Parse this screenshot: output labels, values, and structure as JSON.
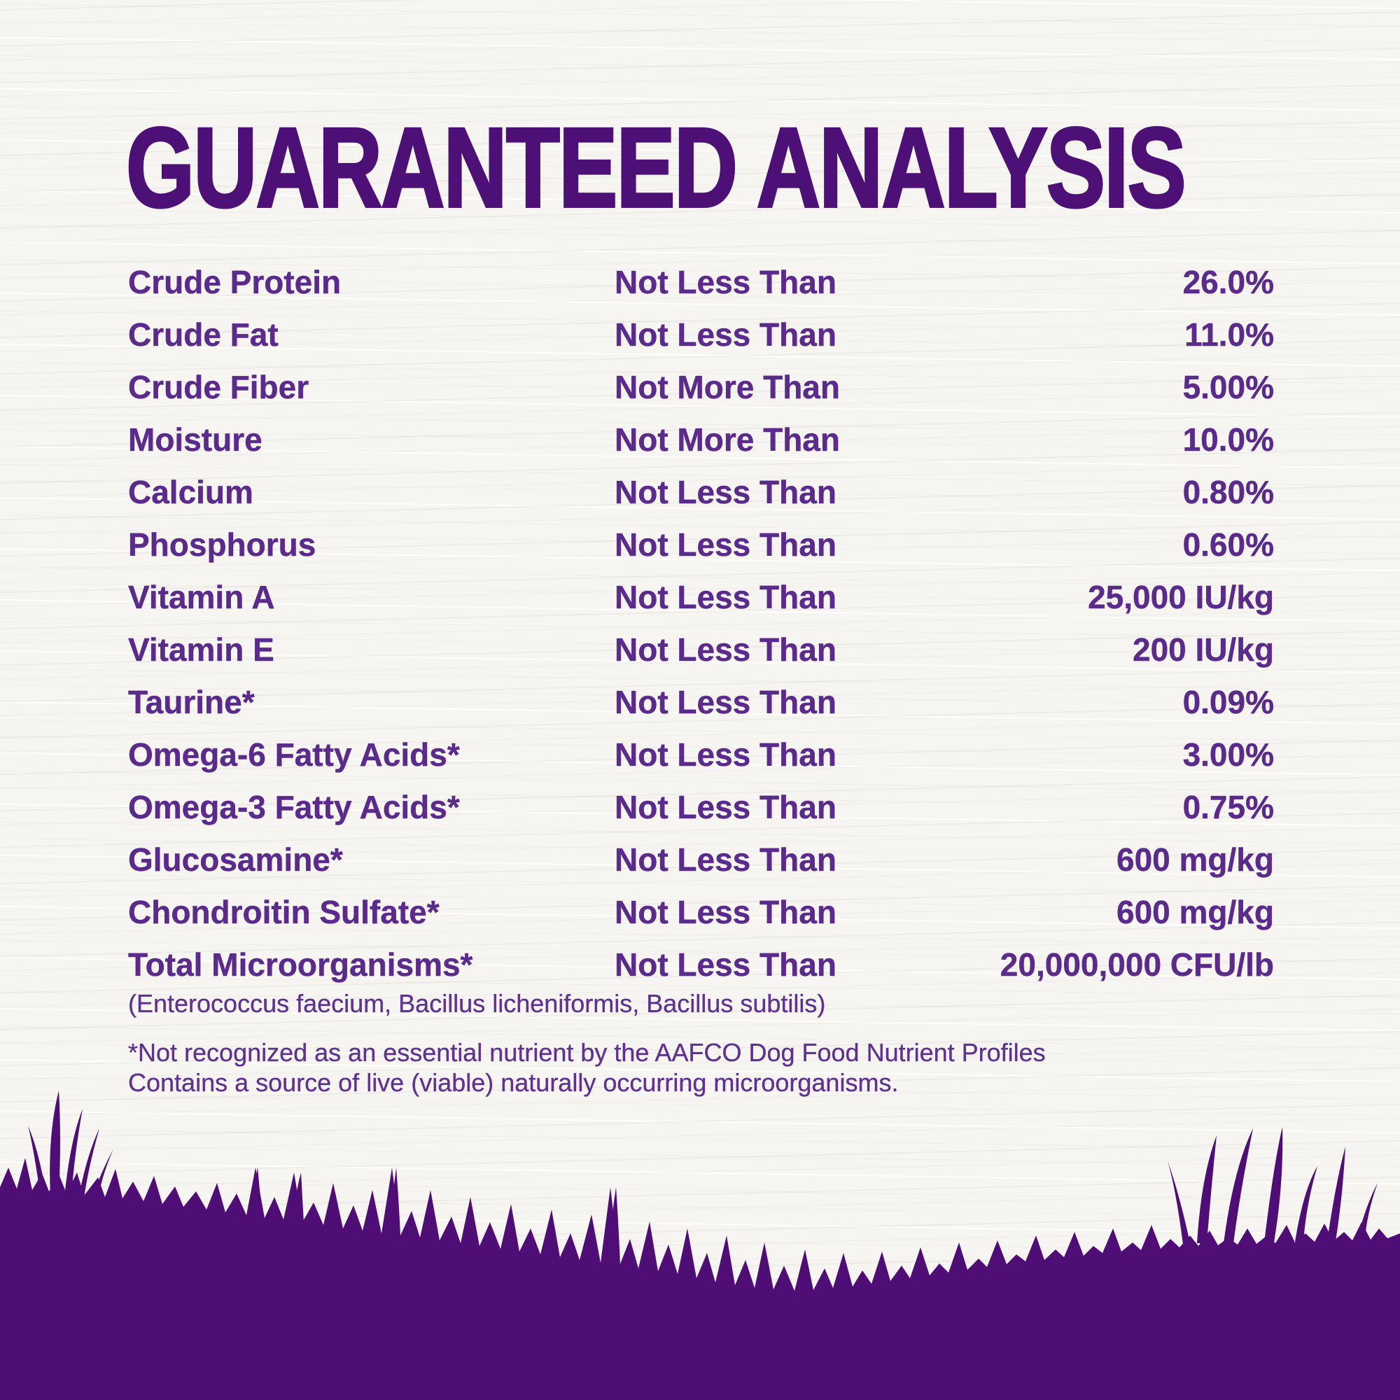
{
  "title": "GUARANTEED ANALYSIS",
  "colors": {
    "background": "#f6f5f2",
    "heading": "#4d1077",
    "text": "#5a2b8d",
    "note": "#5e3193",
    "grass": "#4f0e76"
  },
  "table": {
    "rows": [
      {
        "label": "Crude Protein",
        "qualifier": "Not Less Than",
        "value": "26.0%"
      },
      {
        "label": "Crude Fat",
        "qualifier": "Not Less Than",
        "value": "11.0%"
      },
      {
        "label": "Crude Fiber",
        "qualifier": "Not More Than",
        "value": "5.00%"
      },
      {
        "label": "Moisture",
        "qualifier": "Not More Than",
        "value": "10.0%"
      },
      {
        "label": "Calcium",
        "qualifier": "Not Less Than",
        "value": "0.80%"
      },
      {
        "label": "Phosphorus",
        "qualifier": "Not Less Than",
        "value": "0.60%"
      },
      {
        "label": "Vitamin A",
        "qualifier": "Not Less Than",
        "value": "25,000 IU/kg"
      },
      {
        "label": "Vitamin E",
        "qualifier": "Not Less Than",
        "value": "200 IU/kg"
      },
      {
        "label": "Taurine*",
        "qualifier": "Not Less Than",
        "value": "0.09%"
      },
      {
        "label": "Omega-6 Fatty Acids*",
        "qualifier": "Not Less Than",
        "value": "3.00%"
      },
      {
        "label": "Omega-3 Fatty Acids*",
        "qualifier": "Not Less Than",
        "value": "0.75%"
      },
      {
        "label": "Glucosamine*",
        "qualifier": "Not Less Than",
        "value": "600 mg/kg"
      },
      {
        "label": "Chondroitin Sulfate*",
        "qualifier": "Not Less Than",
        "value": "600 mg/kg"
      },
      {
        "label": "Total Microorganisms*",
        "qualifier": "Not Less Than",
        "value": "20,000,000 CFU/lb"
      }
    ]
  },
  "micro_note": "(Enterococcus faecium, Bacillus licheniformis, Bacillus subtilis)",
  "footnotes": {
    "line1": "*Not recognized as an essential nutrient by the AAFCO Dog Food Nutrient Profiles",
    "line2": "Contains a source of live (viable) naturally occurring microorganisms."
  }
}
